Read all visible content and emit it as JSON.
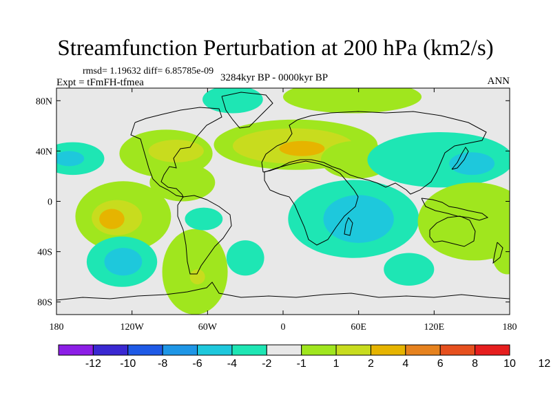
{
  "chart_data": {
    "type": "contour-map",
    "title": "Streamfunction Perturbation at 200 hPa (km2/s)",
    "stats": "rmsd= 1.19632 diff= 6.85785e-09",
    "experiment": "Expt = tFmFH-tfmea",
    "period": "3284kyr BP - 0000kyr BP",
    "season": "ANN",
    "lon_range": [
      -180,
      180
    ],
    "lat_range": [
      -90,
      90
    ],
    "x_ticks": [
      {
        "value": -180,
        "label": "180"
      },
      {
        "value": -120,
        "label": "120W"
      },
      {
        "value": -60,
        "label": "60W"
      },
      {
        "value": 0,
        "label": "0"
      },
      {
        "value": 60,
        "label": "60E"
      },
      {
        "value": 120,
        "label": "120E"
      },
      {
        "value": 180,
        "label": "180"
      }
    ],
    "y_ticks": [
      {
        "value": 80,
        "label": "80N"
      },
      {
        "value": 40,
        "label": "40N"
      },
      {
        "value": 0,
        "label": "0"
      },
      {
        "value": -40,
        "label": "40S"
      },
      {
        "value": -80,
        "label": "80S"
      }
    ],
    "colorbar": {
      "colors": [
        "#8c1ee6",
        "#3a28d2",
        "#1e5ae6",
        "#1e96e6",
        "#1ec8dc",
        "#1ee6b4",
        "#e8e8e8",
        "#a0e61e",
        "#c8dc1e",
        "#e6b400",
        "#e6821e",
        "#e6501e",
        "#e61e1e"
      ],
      "labels": [
        "-12",
        "-10",
        "-8",
        "-6",
        "-4",
        "-2",
        "-1",
        "1",
        "2",
        "4",
        "6",
        "8",
        "10",
        "12"
      ]
    },
    "anomalies": [
      {
        "lon": -167,
        "lat": 34,
        "rlon": 25,
        "rlat": 13,
        "level": -2
      },
      {
        "lon": -170,
        "lat": 34,
        "rlon": 12,
        "rlat": 6,
        "level": -4
      },
      {
        "lon": -127,
        "lat": -12,
        "rlon": 38,
        "rlat": 28,
        "level": 1
      },
      {
        "lon": -132,
        "lat": -13,
        "rlon": 20,
        "rlat": 14,
        "level": 2
      },
      {
        "lon": -136,
        "lat": -14,
        "rlon": 10,
        "rlat": 8,
        "level": 4
      },
      {
        "lon": -128,
        "lat": -48,
        "rlon": 28,
        "rlat": 20,
        "level": -2
      },
      {
        "lon": -127,
        "lat": -48,
        "rlon": 15,
        "rlat": 11,
        "level": -4
      },
      {
        "lon": -70,
        "lat": -56,
        "rlon": 26,
        "rlat": 34,
        "level": 1
      },
      {
        "lon": -68,
        "lat": -60,
        "rlon": 6,
        "rlat": 6,
        "level": 2
      },
      {
        "lon": -63,
        "lat": -14,
        "rlon": 15,
        "rlat": 9,
        "level": -2
      },
      {
        "lon": -30,
        "lat": -45,
        "rlon": 15,
        "rlat": 14,
        "level": -2
      },
      {
        "lon": -93,
        "lat": 38,
        "rlon": 37,
        "rlat": 19,
        "level": 1
      },
      {
        "lon": -85,
        "lat": 40,
        "rlon": 22,
        "rlat": 9,
        "level": 2
      },
      {
        "lon": -80,
        "lat": 15,
        "rlon": 26,
        "rlat": 15,
        "level": 1
      },
      {
        "lon": -40,
        "lat": 81,
        "rlon": 24,
        "rlat": 11,
        "level": -2
      },
      {
        "lon": 55,
        "lat": 83,
        "rlon": 55,
        "rlat": 13,
        "level": 1
      },
      {
        "lon": 10,
        "lat": 45,
        "rlon": 65,
        "rlat": 20,
        "level": 1
      },
      {
        "lon": 8,
        "lat": 44,
        "rlon": 48,
        "rlat": 14,
        "level": 2
      },
      {
        "lon": 15,
        "lat": 42,
        "rlon": 18,
        "rlat": 6,
        "level": 4
      },
      {
        "lon": 58,
        "lat": 33,
        "rlon": 28,
        "rlat": 15,
        "level": 1
      },
      {
        "lon": 56,
        "lat": -14,
        "rlon": 52,
        "rlat": 31,
        "level": -2
      },
      {
        "lon": 60,
        "lat": -14,
        "rlon": 28,
        "rlat": 19,
        "level": -4
      },
      {
        "lon": 125,
        "lat": 33,
        "rlon": 58,
        "rlat": 22,
        "level": -2
      },
      {
        "lon": 150,
        "lat": 30,
        "rlon": 18,
        "rlat": 9,
        "level": -4
      },
      {
        "lon": 152,
        "lat": -16,
        "rlon": 45,
        "rlat": 31,
        "level": 1
      },
      {
        "lon": 100,
        "lat": -54,
        "rlon": 20,
        "rlat": 13,
        "level": -2
      },
      {
        "lon": 178,
        "lat": -42,
        "rlon": 12,
        "rlat": 16,
        "level": 1
      }
    ]
  }
}
